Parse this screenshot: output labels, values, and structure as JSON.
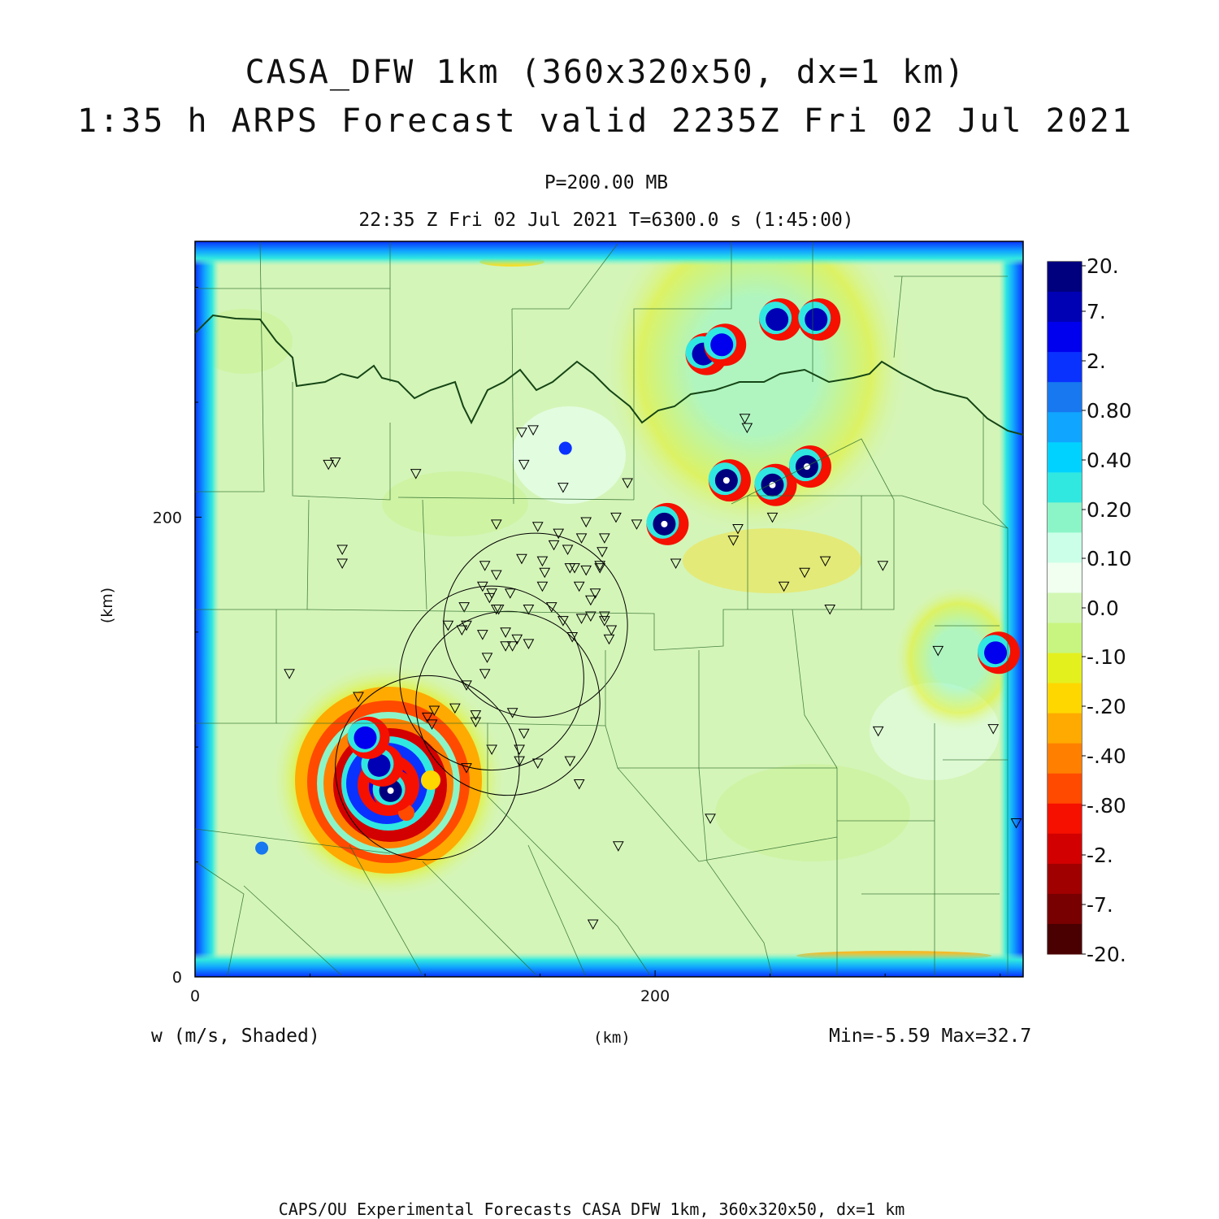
{
  "title": "CASA_DFW 1km (360x320x50, dx=1 km)",
  "subtitle": "1:35 h ARPS Forecast valid 2235Z Fri 02 Jul 2021",
  "level_label": "P=200.00 MB",
  "time_label": "22:35 Z Fri 02 Jul 2021    T=6300.0 s (1:45:00)",
  "variable_label": "w (m/s, Shaded)",
  "min_max_label": "Min=-5.59 Max=32.7",
  "footer": "CAPS/OU Experimental Forecasts  CASA DFW 1km, 360x320x50, dx=1 km",
  "chart_data": {
    "type": "heatmap",
    "variable": "w (m/s, Shaded)",
    "xlabel": "(km)",
    "ylabel": "(km)",
    "xlim": [
      0,
      360
    ],
    "ylim": [
      0,
      320
    ],
    "x_ticks": [
      0,
      200
    ],
    "y_ticks": [
      0,
      200
    ],
    "field_min": -5.59,
    "field_max": 32.7,
    "colorbar": {
      "labels": [
        "20.",
        "7.",
        "2.",
        "0.80",
        "0.40",
        "0.20",
        "0.10",
        "0.0",
        "-.10",
        "-.20",
        "-.40",
        "-.80",
        "-2.",
        "-7.",
        "-20."
      ],
      "colors": [
        "#00007f",
        "#0000b5",
        "#0000ee",
        "#0a32ff",
        "#1778f0",
        "#10a6ff",
        "#00d2ff",
        "#30e8e0",
        "#8cf5c8",
        "#ccffe8",
        "#f0fff0",
        "#d2f7b4",
        "#c8f580",
        "#e4f01e",
        "#ffd700",
        "#ffaa00",
        "#ff8000",
        "#ff4a00",
        "#f51000",
        "#d20000",
        "#a00000",
        "#780000",
        "#4a0000"
      ]
    },
    "updraft_cores": [
      {
        "x": 85,
        "y": 81,
        "w": 32.7
      },
      {
        "x": 80,
        "y": 92,
        "w": 7
      },
      {
        "x": 74,
        "y": 104,
        "w": 2
      },
      {
        "x": 29,
        "y": 56,
        "w": 0.4
      },
      {
        "x": 204,
        "y": 197,
        "w": 20
      },
      {
        "x": 231,
        "y": 216,
        "w": 20
      },
      {
        "x": 251,
        "y": 214,
        "w": 20
      },
      {
        "x": 266,
        "y": 222,
        "w": 20
      },
      {
        "x": 253,
        "y": 286,
        "w": 7
      },
      {
        "x": 270,
        "y": 286,
        "w": 7
      },
      {
        "x": 221,
        "y": 271,
        "w": 7
      },
      {
        "x": 229,
        "y": 275,
        "w": 2
      },
      {
        "x": 161,
        "y": 230,
        "w": 0.8
      },
      {
        "x": 348,
        "y": 141,
        "w": 2
      }
    ],
    "downdraft_min": {
      "x": 95,
      "y": 85,
      "w": -5.59
    },
    "radar_rings": [
      {
        "x": 148,
        "y": 153,
        "r": 40
      },
      {
        "x": 129,
        "y": 130,
        "r": 40
      },
      {
        "x": 101,
        "y": 91,
        "r": 40
      },
      {
        "x": 136,
        "y": 119,
        "r": 40
      }
    ]
  }
}
